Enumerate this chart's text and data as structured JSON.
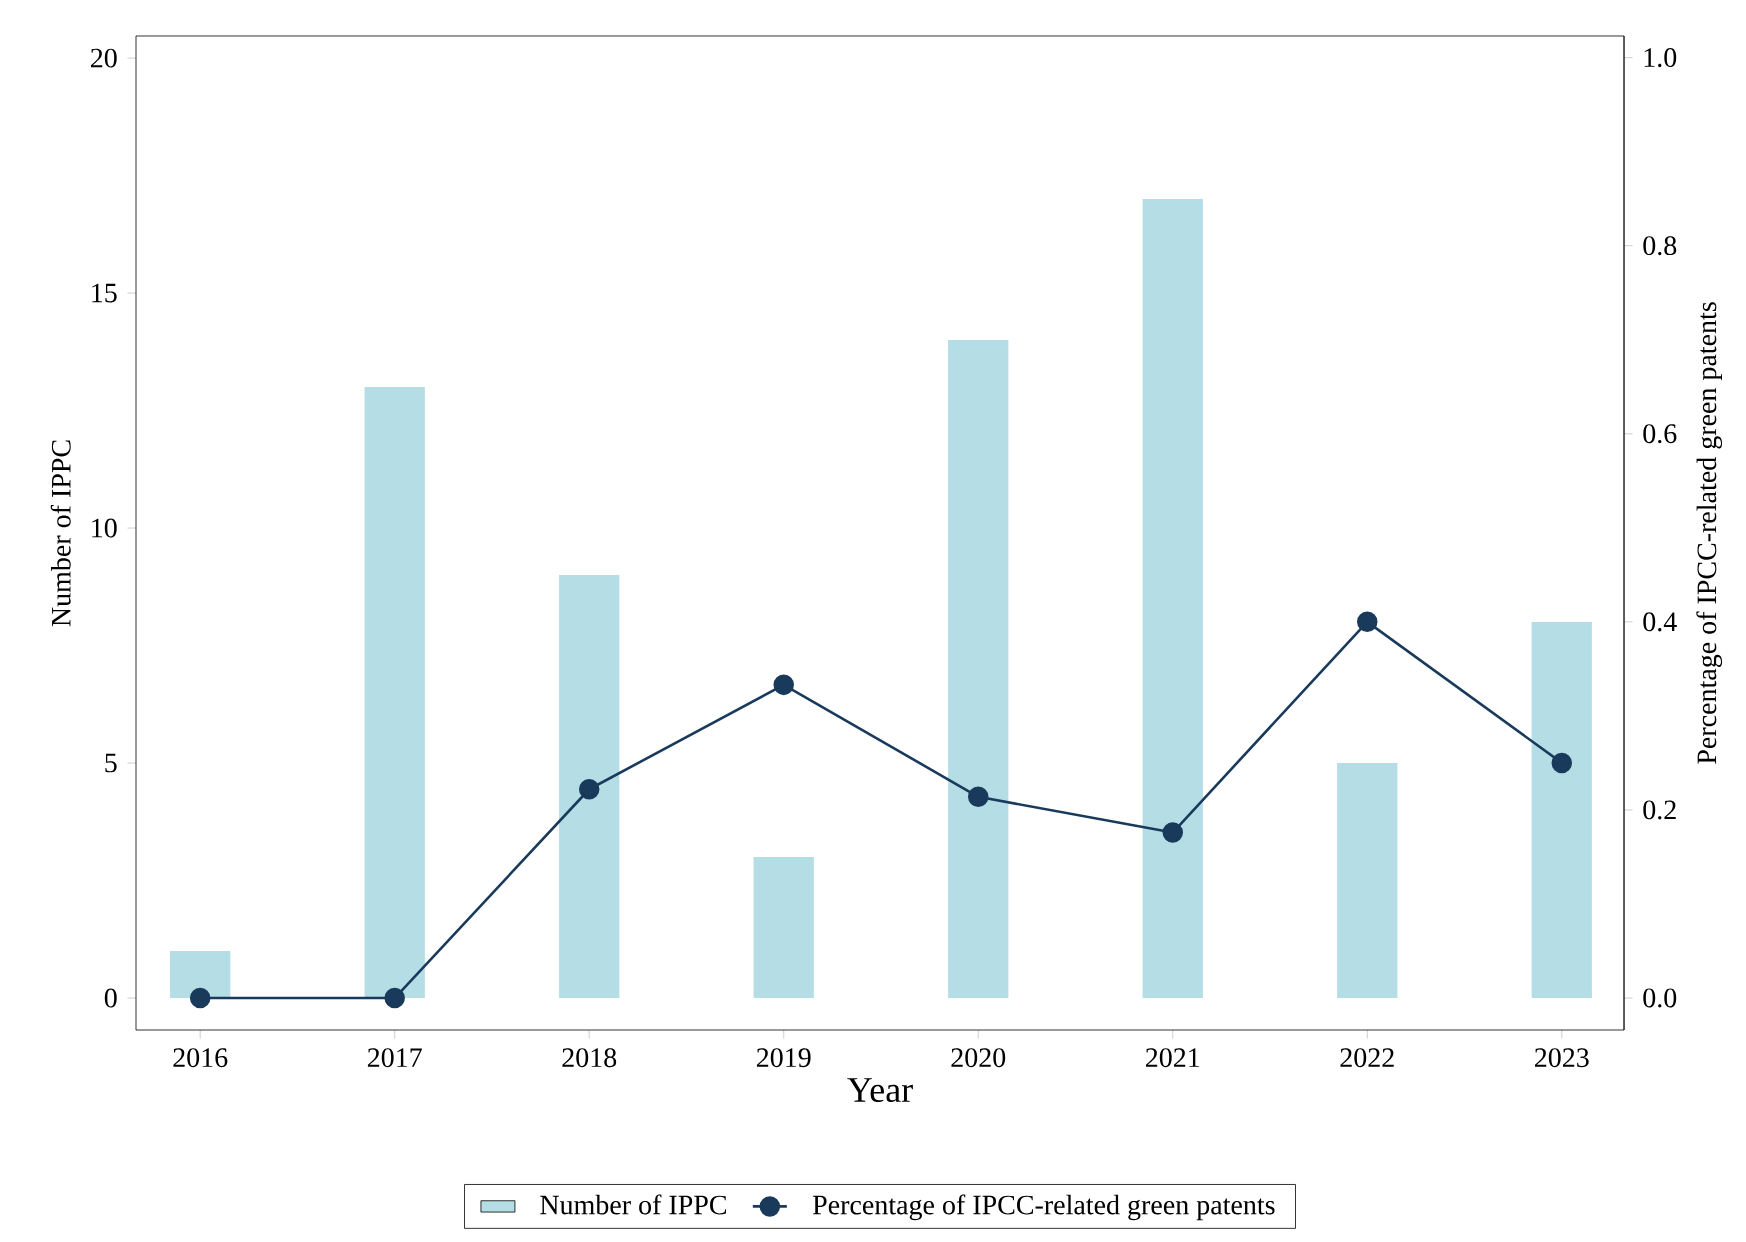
{
  "chart_data": {
    "type": "bar",
    "xlabel": "Year",
    "ylabel": "Number of IPPC",
    "y2label": "Percentage of IPCC-related green patents",
    "categories": [
      "2016",
      "2017",
      "2018",
      "2019",
      "2020",
      "2021",
      "2022",
      "2023"
    ],
    "series": [
      {
        "name": "Number of IPPC",
        "color": "#b4dde6",
        "values": [
          1,
          13,
          9,
          3,
          14,
          17,
          5,
          8
        ]
      },
      {
        "name": "Percentage of IPCC-related green patents",
        "type": "line",
        "axis": "y2",
        "color": "#1a3a5c",
        "values": [
          0,
          0,
          0.222,
          0.333,
          0.214,
          0.176,
          0.4,
          0.25
        ]
      }
    ],
    "marker": "circle",
    "legend": "bottom",
    "ylim": [
      -0.68,
      20.47
    ],
    "yticks": [
      0,
      5,
      10,
      15,
      20
    ],
    "y2lim": [
      -0.034,
      1.023
    ],
    "y2ticks": [
      {
        "value": 0,
        "label": "0.0"
      },
      {
        "value": 0.2,
        "label": "0.2"
      },
      {
        "value": 0.4,
        "label": "0.4"
      },
      {
        "value": 0.6,
        "label": "0.6"
      },
      {
        "value": 0.8,
        "label": "0.8"
      },
      {
        "value": 1,
        "label": "1.0"
      }
    ]
  }
}
